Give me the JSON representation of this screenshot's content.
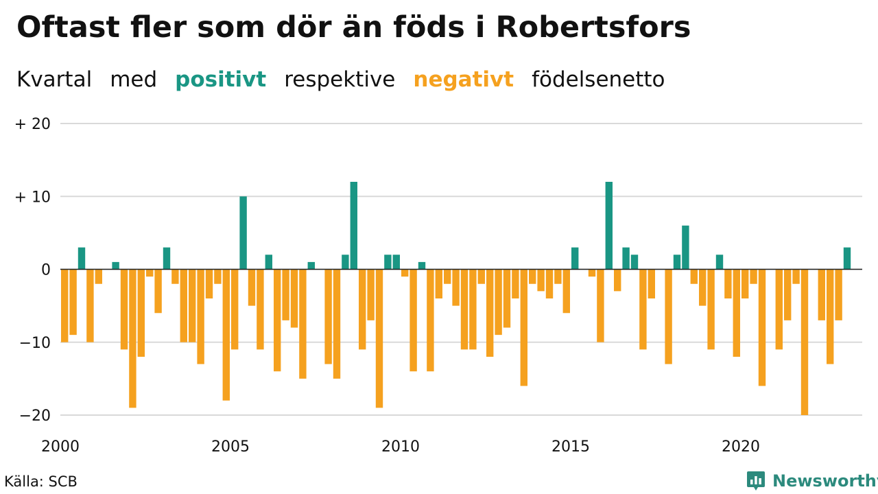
{
  "title": "Oftast fler som dör än föds i Robertsfors",
  "subtitle": {
    "part1": "Kvartal",
    "part2": "med",
    "positive_word": "positivt",
    "part3": "respektive",
    "negative_word": "negativt",
    "part4": "födelsenetto"
  },
  "colors": {
    "positive": "#1a9684",
    "negative": "#f5a11f",
    "grid": "#d9d9d9",
    "text": "#111111"
  },
  "source": "Källa: SCB",
  "brand": {
    "name": "Newsworthy",
    "icon": "bar-chart-bubble-icon"
  },
  "chart_data": {
    "type": "bar",
    "x_start_year": 2000,
    "periods_per_year": 4,
    "ylim": [
      -20,
      20
    ],
    "grid": true,
    "y_ticks": [
      {
        "value": 20,
        "label": "+ 20"
      },
      {
        "value": 10,
        "label": "+ 10"
      },
      {
        "value": 0,
        "label": "0"
      },
      {
        "value": -10,
        "label": "−10"
      },
      {
        "value": -20,
        "label": "−20"
      }
    ],
    "x_ticks": [
      {
        "value": 2000,
        "label": "2000"
      },
      {
        "value": 2005,
        "label": "2005"
      },
      {
        "value": 2010,
        "label": "2010"
      },
      {
        "value": 2015,
        "label": "2015"
      },
      {
        "value": 2020,
        "label": "2020"
      }
    ],
    "values": [
      -10,
      -9,
      3,
      -10,
      -2,
      0,
      1,
      -11,
      -19,
      -12,
      -1,
      -6,
      3,
      -2,
      -10,
      -10,
      -13,
      -4,
      -2,
      -18,
      -11,
      10,
      -5,
      -11,
      2,
      -14,
      -7,
      -8,
      -15,
      1,
      0,
      -13,
      -15,
      2,
      12,
      -11,
      -7,
      -19,
      2,
      2,
      -1,
      -14,
      1,
      -14,
      -4,
      -2,
      -5,
      -11,
      -11,
      -2,
      -12,
      -9,
      -8,
      -4,
      -16,
      -2,
      -3,
      -4,
      -2,
      -6,
      3,
      0,
      -1,
      -10,
      12,
      -3,
      3,
      2,
      -11,
      -4,
      0,
      -13,
      2,
      6,
      -2,
      -5,
      -11,
      2,
      -4,
      -12,
      -4,
      -2,
      -16,
      0,
      -11,
      -7,
      -2,
      -20,
      0,
      -7,
      -13,
      -7,
      3
    ]
  }
}
